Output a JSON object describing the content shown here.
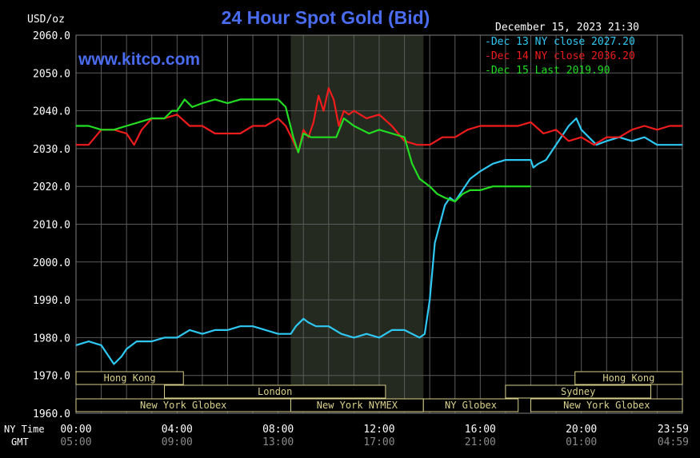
{
  "chart_data": {
    "type": "line",
    "title": "24 Hour Spot Gold (Bid)",
    "ylabel": "USD/oz",
    "timestamp": "December 15, 2023 21:30",
    "watermark": "www.kitco.com",
    "ylim": [
      1960,
      2060
    ],
    "y_ticks": [
      "2060.0",
      "2050.0",
      "2040.0",
      "2030.0",
      "2020.0",
      "2010.0",
      "2000.0",
      "1990.0",
      "1980.0",
      "1970.0",
      "1960.0"
    ],
    "x_tick_labels_ny": [
      "00:00",
      "04:00",
      "08:00",
      "12:00",
      "16:00",
      "20:00",
      "23:59"
    ],
    "x_tick_labels_gmt": [
      "05:00",
      "09:00",
      "13:00",
      "17:00",
      "21:00",
      "01:00",
      "04:59"
    ],
    "x_row_labels": {
      "ny": "NY Time",
      "gmt": "GMT"
    },
    "grid": true,
    "shaded_period": [
      8.5,
      13.75
    ],
    "legend": [
      {
        "label": "-Dec 13 NY close 2027.20",
        "color": "#2ec8f2"
      },
      {
        "label": "-Dec 14 NY close 2036.20",
        "color": "#ee1c1c"
      },
      {
        "label": "-Dec 15 Last 2019.90",
        "color": "#22dd22"
      }
    ],
    "series": [
      {
        "name": "Dec 13",
        "color": "#2ec8f2",
        "x": [
          0,
          0.5,
          1,
          1.3,
          1.5,
          1.8,
          2,
          2.4,
          3,
          3.5,
          4,
          4.5,
          5,
          5.5,
          6,
          6.5,
          7,
          7.5,
          8,
          8.5,
          8.7,
          9,
          9.2,
          9.5,
          10,
          10.5,
          11,
          11.5,
          12,
          12.5,
          13,
          13.3,
          13.6,
          13.8,
          14,
          14.2,
          14.4,
          14.6,
          14.8,
          15,
          15.3,
          15.6,
          16,
          16.5,
          17,
          17.5,
          18,
          18.1,
          18.3,
          18.6,
          18.9,
          19.2,
          19.5,
          19.8,
          20,
          20.3,
          20.6,
          21,
          21.5,
          22,
          22.5,
          23,
          23.5,
          24
        ],
        "y": [
          1978,
          1979,
          1978,
          1975,
          1973,
          1975,
          1977,
          1979,
          1979,
          1980,
          1980,
          1982,
          1981,
          1982,
          1982,
          1983,
          1983,
          1982,
          1981,
          1981,
          1983,
          1985,
          1984,
          1983,
          1983,
          1981,
          1980,
          1981,
          1980,
          1982,
          1982,
          1981,
          1980,
          1981,
          1990,
          2005,
          2010,
          2015,
          2017,
          2016,
          2019,
          2022,
          2024,
          2026,
          2027,
          2027,
          2027,
          2025,
          2026,
          2027,
          2030,
          2033,
          2036,
          2038,
          2035,
          2033,
          2031,
          2032,
          2033,
          2032,
          2033,
          2031,
          2031,
          2031
        ]
      },
      {
        "name": "Dec 14",
        "color": "#ee1c1c",
        "x": [
          0,
          0.5,
          1,
          1.5,
          2,
          2.3,
          2.6,
          3,
          3.5,
          4,
          4.5,
          5,
          5.5,
          6,
          6.5,
          7,
          7.5,
          8,
          8.3,
          8.6,
          8.8,
          9,
          9.2,
          9.4,
          9.6,
          9.8,
          10,
          10.2,
          10.4,
          10.6,
          10.8,
          11,
          11.5,
          12,
          12.5,
          13,
          13.5,
          14,
          14.5,
          15,
          15.5,
          16,
          16.5,
          17,
          17.5,
          18,
          18.5,
          19,
          19.5,
          20,
          20.5,
          21,
          21.5,
          22,
          22.5,
          23,
          23.5,
          24
        ],
        "y": [
          2031,
          2031,
          2035,
          2035,
          2034,
          2031,
          2035,
          2038,
          2038,
          2039,
          2036,
          2036,
          2034,
          2034,
          2034,
          2036,
          2036,
          2038,
          2036,
          2032,
          2029,
          2035,
          2033,
          2037,
          2044,
          2040,
          2046,
          2043,
          2036,
          2040,
          2039,
          2040,
          2038,
          2039,
          2036,
          2032,
          2031,
          2031,
          2033,
          2033,
          2035,
          2036,
          2036,
          2036,
          2036,
          2037,
          2034,
          2035,
          2032,
          2033,
          2031,
          2033,
          2033,
          2035,
          2036,
          2035,
          2036,
          2036
        ]
      },
      {
        "name": "Dec 15",
        "color": "#22dd22",
        "x": [
          0,
          0.5,
          1,
          1.5,
          2,
          2.5,
          3,
          3.5,
          3.8,
          4,
          4.3,
          4.6,
          5,
          5.5,
          6,
          6.5,
          7,
          7.5,
          8,
          8.3,
          8.6,
          8.8,
          9,
          9.3,
          9.6,
          10,
          10.3,
          10.6,
          11,
          11.3,
          11.6,
          12,
          12.5,
          13,
          13.3,
          13.6,
          13.8,
          14,
          14.3,
          14.6,
          15,
          15.3,
          15.6,
          16,
          16.5,
          17,
          17.5,
          18
        ],
        "y": [
          2036,
          2036,
          2035,
          2035,
          2036,
          2037,
          2038,
          2038,
          2040,
          2040,
          2043,
          2041,
          2042,
          2043,
          2042,
          2043,
          2043,
          2043,
          2043,
          2041,
          2033,
          2029,
          2034,
          2033,
          2033,
          2033,
          2033,
          2038,
          2036,
          2035,
          2034,
          2035,
          2034,
          2033,
          2026,
          2022,
          2021,
          2020,
          2018,
          2017,
          2016,
          2018,
          2019,
          2019,
          2020,
          2020,
          2020,
          2020
        ]
      }
    ],
    "session_bars": [
      {
        "label": "Hong Kong",
        "start": -0.25,
        "end": 4.25,
        "row": 0
      },
      {
        "label": "Hong Kong",
        "start": 19.75,
        "end": 24.25,
        "row": 0
      },
      {
        "label": "London",
        "start": 3.5,
        "end": 12.25,
        "row": 1
      },
      {
        "label": "Sydney",
        "start": 17.0,
        "end": 22.75,
        "row": 1
      },
      {
        "label": "New York Globex",
        "start": -0.25,
        "end": 8.5,
        "row": 2
      },
      {
        "label": "New York NYMEX",
        "start": 8.5,
        "end": 13.75,
        "row": 2
      },
      {
        "label": "NY Globex",
        "start": 13.75,
        "end": 17.5,
        "row": 2
      },
      {
        "label": "New York Globex",
        "start": 18.0,
        "end": 24.25,
        "row": 2
      }
    ]
  }
}
